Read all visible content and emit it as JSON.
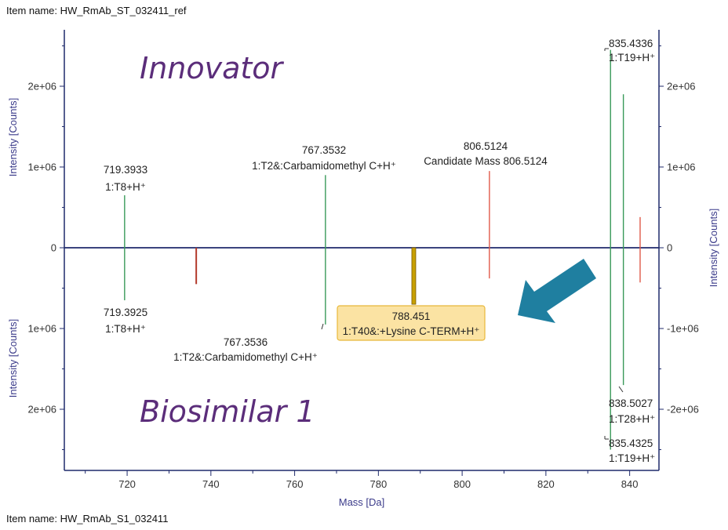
{
  "top_item_name": "Item name: HW_RmAb_ST_032411_ref",
  "bottom_item_name": "Item name: HW_RmAb_S1_032411",
  "innovator_label": "Innovator",
  "biosimilar_label": "Biosimilar 1",
  "colors": {
    "axis": "#1f2a6b",
    "green_peak": "#3a9a5a",
    "red_peak": "#e05a4a",
    "darkred_peak": "#b33a2a",
    "gold_peak": "#c8a000",
    "arrow": "#1f7fa0",
    "highlight_fill": "#fbe3a3",
    "highlight_border": "#e8b83a"
  },
  "chart_data": {
    "type": "bar",
    "xlabel": "Mass [Da]",
    "ylabel_top_left": "Intensity [Counts]",
    "ylabel_bottom_left": "Intensity [Counts]",
    "ylabel_right": "Intensity [Counts]",
    "xlim": [
      705,
      847
    ],
    "ylim": [
      -2650000.0,
      2650000.0
    ],
    "x_ticks": [
      720,
      740,
      760,
      780,
      800,
      820,
      840
    ],
    "left_y_ticks": [
      {
        "value": 2000000,
        "label": "2e+06"
      },
      {
        "value": 1000000,
        "label": "1e+06"
      },
      {
        "value": 0,
        "label": "0"
      },
      {
        "value": -1000000,
        "label": "1e+06"
      },
      {
        "value": -2000000,
        "label": "2e+06"
      }
    ],
    "right_y_ticks": [
      {
        "value": 2000000,
        "label": "2e+06"
      },
      {
        "value": 1000000,
        "label": "1e+06"
      },
      {
        "value": 0,
        "label": "0"
      },
      {
        "value": -1000000,
        "label": "-1e+06"
      },
      {
        "value": -2000000,
        "label": "-2e+06"
      }
    ],
    "innovator_peaks": [
      {
        "x": 719.3933,
        "y": 650000,
        "color": "green",
        "label": [
          "719.3933",
          "1:T8+H⁺"
        ]
      },
      {
        "x": 767.3532,
        "y": 900000,
        "color": "green",
        "label": [
          "767.3532",
          "1:T2&:Carbamidomethyl C+H⁺"
        ]
      },
      {
        "x": 806.5124,
        "y": 950000,
        "color": "red",
        "label": [
          "806.5124",
          "Candidate Mass 806.5124"
        ]
      },
      {
        "x": 835.4336,
        "y": 2450000,
        "color": "green",
        "label": [
          "835.4336",
          "1:T19+H⁺"
        ]
      },
      {
        "x": 838.5,
        "y": 1900000,
        "color": "green",
        "label": []
      },
      {
        "x": 842.5,
        "y": 380000,
        "color": "red",
        "label": []
      }
    ],
    "biosimilar_peaks": [
      {
        "x": 719.3925,
        "y": -650000,
        "color": "green",
        "label": [
          "719.3925",
          "1:T8+H⁺"
        ]
      },
      {
        "x": 736.5,
        "y": -450000,
        "color": "darkred",
        "label": []
      },
      {
        "x": 767.3536,
        "y": -950000,
        "color": "green",
        "label": [
          "767.3536",
          "1:T2&:Carbamidomethyl C+H⁺"
        ]
      },
      {
        "x": 788.451,
        "y": -700000,
        "color": "gold",
        "label": [
          "788.451",
          "1:T40&:+Lysine C-TERM+H⁺"
        ]
      },
      {
        "x": 806.5,
        "y": -380000,
        "color": "red",
        "label": []
      },
      {
        "x": 838.5027,
        "y": -1700000,
        "color": "green",
        "label": [
          "838.5027",
          "1:T28+H⁺"
        ]
      },
      {
        "x": 835.4325,
        "y": -2500000,
        "color": "green",
        "label": [
          "835.4325",
          "1:T19+H⁺"
        ]
      },
      {
        "x": 842.5,
        "y": -430000,
        "color": "red",
        "label": []
      }
    ]
  }
}
